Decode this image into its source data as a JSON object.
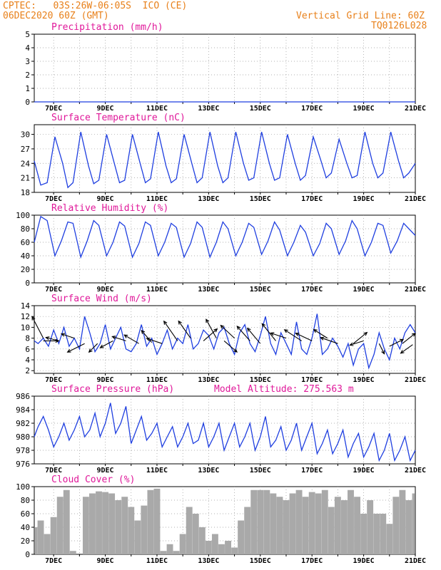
{
  "header": {
    "left_line1": "CPTEC:   03S:26W-06:05S  ICO (CE)",
    "left_line2": "06DEC2020 60Z (GMT)",
    "right_line1": "Vertical Grid Line: 60Z",
    "right_line2": "TQ0126L028"
  },
  "colors": {
    "header": "#e8801a",
    "title": "#e0189a",
    "line": "#1f3fe0",
    "cloud": "#a9a9a9",
    "axis": "#000000"
  },
  "x_ticks": [
    "7DEC",
    "9DEC",
    "11DEC",
    "13DEC",
    "15DEC",
    "17DEC",
    "19DEC",
    "21DEC"
  ],
  "chart_data": [
    {
      "type": "line",
      "title": "Precipitation (mm/h)",
      "ylim": [
        0,
        5
      ],
      "yticks": [
        0,
        1,
        2,
        3,
        4,
        5
      ],
      "xlim_days": [
        6.25,
        21
      ],
      "grid": true,
      "series": [
        {
          "x": [
            6.25,
            21
          ],
          "values": [
            0,
            0
          ]
        }
      ]
    },
    {
      "type": "line",
      "title": "Surface Temperature (nC)",
      "ylim": [
        18,
        32
      ],
      "yticks": [
        18,
        21,
        24,
        27,
        30
      ],
      "xlim_days": [
        6.25,
        21
      ],
      "grid": true,
      "series": [
        {
          "x": [
            6.25,
            6.5,
            6.75,
            7.05,
            7.35,
            7.55,
            7.75,
            8.05,
            8.35,
            8.55,
            8.75,
            9.05,
            9.35,
            9.55,
            9.75,
            10.05,
            10.35,
            10.55,
            10.75,
            11.05,
            11.35,
            11.55,
            11.75,
            12.05,
            12.35,
            12.55,
            12.75,
            13.05,
            13.35,
            13.55,
            13.75,
            14.05,
            14.35,
            14.55,
            14.75,
            15.05,
            15.35,
            15.55,
            15.75,
            16.05,
            16.35,
            16.55,
            16.75,
            17.05,
            17.35,
            17.55,
            17.75,
            18.05,
            18.35,
            18.55,
            18.75,
            19.05,
            19.35,
            19.55,
            19.75,
            20.05,
            20.35,
            20.55,
            20.75,
            21.0
          ],
          "values": [
            24.5,
            19.5,
            20,
            29.5,
            24,
            19,
            20,
            30.5,
            23.5,
            19.8,
            20.5,
            30,
            24,
            20,
            20.5,
            30,
            24,
            20,
            20.8,
            30.5,
            23.5,
            20,
            20.8,
            30,
            24,
            20,
            21,
            30.5,
            23.5,
            20,
            21,
            30.5,
            24,
            20.5,
            21,
            30.5,
            24,
            20.5,
            21,
            30,
            24,
            20.5,
            21.5,
            29.5,
            24.5,
            21,
            22,
            29,
            24,
            21,
            21.5,
            30.5,
            24,
            21,
            22,
            30.5,
            24.5,
            21,
            22,
            24
          ]
        }
      ]
    },
    {
      "type": "line",
      "title": "Relative Humidity (%)",
      "ylim": [
        0,
        100
      ],
      "yticks": [
        0,
        20,
        40,
        60,
        80,
        100
      ],
      "xlim_days": [
        6.25,
        21
      ],
      "grid": true,
      "series": [
        {
          "x": [
            6.25,
            6.5,
            6.75,
            7.05,
            7.3,
            7.55,
            7.75,
            8.05,
            8.3,
            8.55,
            8.75,
            9.05,
            9.3,
            9.55,
            9.75,
            10.05,
            10.3,
            10.55,
            10.75,
            11.05,
            11.3,
            11.55,
            11.75,
            12.05,
            12.3,
            12.55,
            12.75,
            13.05,
            13.3,
            13.55,
            13.75,
            14.05,
            14.3,
            14.55,
            14.75,
            15.05,
            15.3,
            15.55,
            15.75,
            16.05,
            16.3,
            16.55,
            16.75,
            17.05,
            17.3,
            17.55,
            17.75,
            18.05,
            18.3,
            18.55,
            18.75,
            19.05,
            19.3,
            19.55,
            19.75,
            20.05,
            20.3,
            20.55,
            20.75,
            21.0
          ],
          "values": [
            60,
            98,
            92,
            40,
            62,
            90,
            88,
            38,
            62,
            92,
            85,
            40,
            60,
            90,
            84,
            38,
            58,
            90,
            85,
            40,
            60,
            88,
            82,
            38,
            58,
            90,
            82,
            38,
            60,
            90,
            80,
            40,
            60,
            88,
            82,
            42,
            62,
            90,
            78,
            40,
            60,
            85,
            75,
            40,
            58,
            88,
            80,
            42,
            62,
            92,
            80,
            40,
            60,
            88,
            85,
            44,
            62,
            88,
            80,
            70
          ]
        }
      ]
    },
    {
      "type": "line",
      "title": "Surface Wind (m/s)",
      "ylim": [
        1.5,
        14
      ],
      "yticks": [
        2,
        4,
        6,
        8,
        10,
        12,
        14
      ],
      "xlim_days": [
        6.25,
        21
      ],
      "grid": true,
      "series": [
        {
          "x": [
            6.25,
            6.4,
            6.6,
            6.8,
            7.0,
            7.2,
            7.4,
            7.6,
            7.8,
            8.0,
            8.2,
            8.4,
            8.6,
            8.8,
            9.0,
            9.2,
            9.4,
            9.6,
            9.8,
            10.0,
            10.2,
            10.4,
            10.6,
            10.8,
            11.0,
            11.2,
            11.4,
            11.6,
            11.8,
            12.0,
            12.2,
            12.4,
            12.6,
            12.8,
            13.0,
            13.2,
            13.4,
            13.6,
            13.8,
            14.0,
            14.2,
            14.4,
            14.6,
            14.8,
            15.0,
            15.2,
            15.4,
            15.6,
            15.8,
            16.0,
            16.2,
            16.4,
            16.6,
            16.8,
            17.0,
            17.2,
            17.4,
            17.6,
            17.8,
            18.0,
            18.2,
            18.4,
            18.6,
            18.8,
            19.0,
            19.2,
            19.4,
            19.6,
            19.8,
            20.0,
            20.2,
            20.4,
            20.6,
            20.8,
            21.0
          ],
          "values": [
            7.5,
            7,
            8,
            6.5,
            9.5,
            7,
            10,
            6.5,
            8,
            6,
            12,
            9,
            5.5,
            7,
            10.5,
            6,
            8,
            10,
            6,
            5.5,
            7,
            10.5,
            6.5,
            8,
            5,
            7,
            9.5,
            6,
            8,
            7,
            10.5,
            6,
            7,
            9.5,
            8.5,
            6,
            9,
            10,
            7,
            5,
            9,
            10.5,
            7,
            5.5,
            8.5,
            12,
            7,
            5,
            9,
            7,
            5,
            11,
            6,
            5,
            8,
            12.5,
            5,
            6,
            8,
            6.5,
            4.5,
            7,
            3,
            6,
            7,
            2.5,
            5,
            9,
            6,
            4,
            8,
            6,
            9,
            10.5,
            9
          ]
        }
      ],
      "wind_arrows": [
        {
          "x": 6.6,
          "y": 8.0,
          "u": -1.3,
          "v": 2.5
        },
        {
          "x": 6.6,
          "y": 7.5,
          "u": 1.8,
          "v": 0
        },
        {
          "x": 7.2,
          "y": 7.5,
          "u": -1.5,
          "v": 0.4
        },
        {
          "x": 7.8,
          "y": 8.0,
          "u": -1.5,
          "v": 0.5
        },
        {
          "x": 8.2,
          "y": 7.0,
          "u": -2.0,
          "v": -1.0
        },
        {
          "x": 8.7,
          "y": 7.0,
          "u": -1.0,
          "v": -1.0
        },
        {
          "x": 9.3,
          "y": 7.5,
          "u": -1.5,
          "v": -0.8
        },
        {
          "x": 9.8,
          "y": 7.5,
          "u": -1.6,
          "v": 0.5
        },
        {
          "x": 10.3,
          "y": 7.0,
          "u": -1.7,
          "v": 1.0
        },
        {
          "x": 10.8,
          "y": 7.2,
          "u": -1.2,
          "v": 1.4
        },
        {
          "x": 11.2,
          "y": 7.0,
          "u": -1.8,
          "v": 0.6
        },
        {
          "x": 11.8,
          "y": 7.5,
          "u": -1.6,
          "v": 2.3
        },
        {
          "x": 12.3,
          "y": 8.0,
          "u": -1.4,
          "v": 2.0
        },
        {
          "x": 12.8,
          "y": 7.5,
          "u": 1.6,
          "v": 1.4
        },
        {
          "x": 13.3,
          "y": 8.0,
          "u": -1.2,
          "v": 2.2
        },
        {
          "x": 13.6,
          "y": 7.5,
          "u": 1.5,
          "v": -1.3
        },
        {
          "x": 14.0,
          "y": 8.0,
          "u": -1.6,
          "v": 1.5
        },
        {
          "x": 14.6,
          "y": 7.5,
          "u": -1.5,
          "v": 1.7
        },
        {
          "x": 15.0,
          "y": 7.0,
          "u": -1.5,
          "v": 1.8
        },
        {
          "x": 15.6,
          "y": 7.5,
          "u": -1.6,
          "v": 2.0
        },
        {
          "x": 16.0,
          "y": 8.0,
          "u": -1.8,
          "v": 0.6
        },
        {
          "x": 16.6,
          "y": 7.5,
          "u": -2.0,
          "v": 1.3
        },
        {
          "x": 17.0,
          "y": 7.5,
          "u": -1.9,
          "v": 0.9
        },
        {
          "x": 17.6,
          "y": 8.0,
          "u": -1.6,
          "v": 1.0
        },
        {
          "x": 18.0,
          "y": 7.0,
          "u": -2.0,
          "v": 0.7
        },
        {
          "x": 18.6,
          "y": 7.0,
          "u": 1.6,
          "v": 1.3
        },
        {
          "x": 19.0,
          "y": 7.5,
          "u": -1.6,
          "v": -0.5
        },
        {
          "x": 19.6,
          "y": 7.0,
          "u": 0.6,
          "v": -1.2
        },
        {
          "x": 20.0,
          "y": 6.5,
          "u": 1.6,
          "v": 0.8
        },
        {
          "x": 20.5,
          "y": 7.0,
          "u": 1.5,
          "v": 1.2
        },
        {
          "x": 20.9,
          "y": 6.8,
          "u": -1.4,
          "v": -1.0
        }
      ]
    },
    {
      "type": "line",
      "title": "Surface Pressure (hPa)",
      "extra_label": "Model Altitude: 275.563  m",
      "ylim": [
        976,
        986
      ],
      "yticks": [
        976,
        978,
        980,
        982,
        984,
        986
      ],
      "xlim_days": [
        6.25,
        21
      ],
      "grid": true,
      "series": [
        {
          "x": [
            6.25,
            6.4,
            6.6,
            6.8,
            7.0,
            7.2,
            7.4,
            7.6,
            7.8,
            8.0,
            8.2,
            8.4,
            8.6,
            8.8,
            9.0,
            9.2,
            9.4,
            9.6,
            9.8,
            10.0,
            10.2,
            10.4,
            10.6,
            10.8,
            11.0,
            11.2,
            11.4,
            11.6,
            11.8,
            12.0,
            12.2,
            12.4,
            12.6,
            12.8,
            13.0,
            13.2,
            13.4,
            13.6,
            13.8,
            14.0,
            14.2,
            14.4,
            14.6,
            14.8,
            15.0,
            15.2,
            15.4,
            15.6,
            15.8,
            16.0,
            16.2,
            16.4,
            16.6,
            16.8,
            17.0,
            17.2,
            17.4,
            17.6,
            17.8,
            18.0,
            18.2,
            18.4,
            18.6,
            18.8,
            19.0,
            19.2,
            19.4,
            19.6,
            19.8,
            20.0,
            20.2,
            20.4,
            20.6,
            20.8,
            21.0
          ],
          "values": [
            980,
            981.5,
            983,
            981,
            978.5,
            980,
            982,
            979.5,
            981,
            983,
            980,
            981,
            983.5,
            980,
            982,
            985,
            980.5,
            982,
            984.5,
            979,
            981,
            983,
            979.5,
            980.5,
            982,
            978.5,
            980,
            981.5,
            978.5,
            980,
            982,
            979,
            979.5,
            982,
            978.5,
            980,
            982,
            978,
            980,
            982,
            978.5,
            980,
            982,
            978,
            980,
            983,
            978.5,
            979.5,
            981.5,
            978,
            979.5,
            982,
            978,
            980,
            982,
            977.5,
            979,
            981,
            977.5,
            979,
            981,
            977,
            979,
            980.5,
            977,
            978.5,
            980.5,
            976.5,
            978,
            980.5,
            976.5,
            978,
            980,
            976.5,
            978
          ]
        }
      ]
    },
    {
      "type": "bar",
      "title": "Cloud Cover (%)",
      "ylim": [
        0,
        100
      ],
      "yticks": [
        0,
        20,
        40,
        60,
        80,
        100
      ],
      "xlim_days": [
        6.25,
        21
      ],
      "grid": true,
      "series": [
        {
          "x": [
            6.25,
            6.5,
            6.75,
            7.0,
            7.25,
            7.5,
            7.75,
            8.0,
            8.25,
            8.5,
            8.75,
            9.0,
            9.25,
            9.5,
            9.75,
            10.0,
            10.25,
            10.5,
            10.75,
            11.0,
            11.25,
            11.5,
            11.75,
            12.0,
            12.25,
            12.5,
            12.75,
            13.0,
            13.25,
            13.5,
            13.75,
            14.0,
            14.25,
            14.5,
            14.75,
            15.0,
            15.25,
            15.5,
            15.75,
            16.0,
            16.25,
            16.5,
            16.75,
            17.0,
            17.25,
            17.5,
            17.75,
            18.0,
            18.25,
            18.5,
            18.75,
            19.0,
            19.25,
            19.5,
            19.75,
            20.0,
            20.25,
            20.5,
            20.75,
            21.0
          ],
          "values": [
            40,
            50,
            30,
            55,
            85,
            95,
            5,
            0,
            85,
            90,
            93,
            92,
            90,
            80,
            85,
            70,
            50,
            72,
            95,
            97,
            5,
            15,
            5,
            30,
            70,
            60,
            40,
            20,
            30,
            15,
            20,
            10,
            50,
            70,
            95,
            95,
            95,
            90,
            85,
            80,
            90,
            95,
            85,
            92,
            90,
            95,
            70,
            85,
            80,
            95,
            85,
            60,
            80,
            60,
            60,
            45,
            85,
            95,
            80,
            90
          ]
        }
      ]
    }
  ]
}
